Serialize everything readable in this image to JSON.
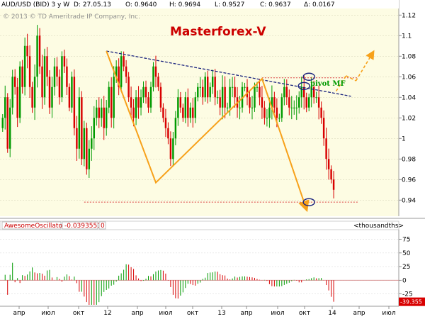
{
  "header": {
    "symbol": "AUD/USD (BID) 3 y W",
    "date": "D: 27.05.13",
    "open": "O: 0.9640",
    "high": "H: 0.9694",
    "low": "L: 0.9527",
    "close": "C: 0.9637",
    "change": "Δ: 0.0167",
    "copyright": "© 2013 © TD Ameritrade IP Company, Inc."
  },
  "annotation": {
    "title": "Masterforex-V",
    "pivot_label": "pivot MF"
  },
  "colors": {
    "plot_bg": "#fdfce3",
    "bull": "#009a00",
    "bear": "#d80000",
    "trendline": "#1a237e",
    "pattern": "#f7a11a",
    "level": "#d84040",
    "ellipse": "#1a237e",
    "title": "#cc0000",
    "pivot": "#009900"
  },
  "oscillator": {
    "name": "AwesomeOscillator",
    "value": "-0.0393551",
    "extra": "0",
    "units": "<thousandths>",
    "last_value": "-39.355"
  },
  "chart_data": [
    {
      "type": "candlestick",
      "title": "Masterforex-V",
      "symbol": "AUD/USD (BID)",
      "timeframe": "3 y W",
      "y_ticks": [
        "0.94",
        "0.96",
        "0.98",
        "1",
        "1.02",
        "1.04",
        "1.06",
        "1.08",
        "1.1",
        "1.12"
      ],
      "x_ticks": [
        "апр",
        "июл",
        "окт",
        "12",
        "апр",
        "июл",
        "окт",
        "13",
        "апр",
        "июл",
        "окт",
        "14",
        "апр",
        "июл"
      ],
      "close_series": [
        1.02,
        1.04,
        0.99,
        1.03,
        1.06,
        1.05,
        1.02,
        1.07,
        1.05,
        1.09,
        1.08,
        1.05,
        1.03,
        1.06,
        1.1,
        1.07,
        1.04,
        1.08,
        1.06,
        1.03,
        1.05,
        1.07,
        1.06,
        1.04,
        1.08,
        1.07,
        1.05,
        1.03,
        1.06,
        1.01,
        0.99,
        1.04,
        0.98,
        1.01,
        0.97,
        0.99,
        1.0,
        1.02,
        1.03,
        1.02,
        1.03,
        1.01,
        1.03,
        1.05,
        1.02,
        1.06,
        1.07,
        1.05,
        1.08,
        1.07,
        1.06,
        1.04,
        1.03,
        1.02,
        1.04,
        1.03,
        1.04,
        1.05,
        1.04,
        1.03,
        1.05,
        1.07,
        1.06,
        1.05,
        1.03,
        1.02,
        1.01,
        1.0,
        0.98,
        1.0,
        1.02,
        1.04,
        1.03,
        1.02,
        1.04,
        1.02,
        1.03,
        1.02,
        1.04,
        1.05,
        1.05,
        1.04,
        1.06,
        1.04,
        1.05,
        1.06,
        1.04,
        1.04,
        1.03,
        1.05,
        1.03,
        1.03,
        1.05,
        1.05,
        1.04,
        1.03,
        1.03,
        1.05,
        1.05,
        1.04,
        1.03,
        1.03,
        1.05,
        1.05,
        1.04,
        1.03,
        1.02,
        1.02,
        1.03,
        1.04,
        1.03,
        1.02,
        1.02,
        1.04,
        1.05,
        1.04,
        1.03,
        1.03,
        1.03,
        1.03,
        1.04,
        1.05,
        1.04,
        1.03,
        1.04,
        1.05,
        1.04,
        1.04,
        1.03,
        1.02,
        1.0,
        0.98,
        0.97,
        0.96,
        0.95
      ],
      "y_range": [
        0.925,
        1.125
      ],
      "trendline": [
        {
          "index": 42,
          "price": 1.085
        },
        {
          "index": 141,
          "price": 1.041
        }
      ],
      "pattern_lines": [
        [
          {
            "index": 42,
            "price": 1.085
          },
          {
            "index": 62,
            "price": 0.957
          },
          {
            "index": 105,
            "price": 1.058
          },
          {
            "index": 123,
            "price": 0.931
          }
        ],
        [
          {
            "index": 135,
            "price": 1.046
          },
          {
            "index": 139,
            "price": 1.061
          }
        ],
        [
          {
            "index": 139,
            "price": 1.061
          },
          {
            "index": 143,
            "price": 1.056
          }
        ],
        [
          {
            "index": 143,
            "price": 1.056
          },
          {
            "index": 150,
            "price": 1.084
          }
        ]
      ],
      "levels": [
        {
          "price": 1.059,
          "from_index": 105,
          "to_index": 144
        },
        {
          "price": 0.938,
          "from_index": 33,
          "to_index": 144
        }
      ],
      "ellipses": [
        {
          "index": 124,
          "price": 1.06
        },
        {
          "index": 122,
          "price": 1.051
        },
        {
          "index": 124,
          "price": 0.938
        }
      ]
    },
    {
      "type": "bar",
      "title": "AwesomeOscillator",
      "units": "<thousandths>",
      "y_ticks": [
        "75",
        "50",
        "25",
        "0",
        "-25"
      ],
      "y_range": [
        -45,
        90
      ],
      "last_value": -39.355
    }
  ]
}
